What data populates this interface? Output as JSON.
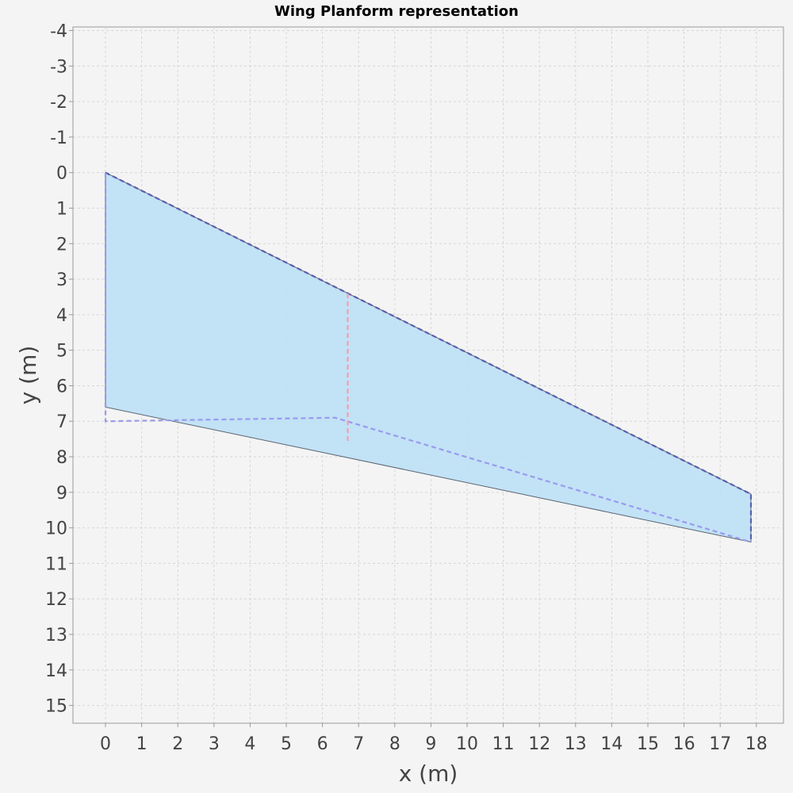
{
  "chart_data": {
    "type": "line",
    "title": "Wing Planform representation",
    "xlabel": "x (m)",
    "ylabel": "y (m)",
    "xlim": [
      -0.9,
      18.75
    ],
    "ylim": [
      -4.1,
      15.5
    ],
    "y_inverted": true,
    "grid": true,
    "xticks": [
      "0",
      "1",
      "2",
      "3",
      "4",
      "5",
      "6",
      "7",
      "8",
      "9",
      "10",
      "11",
      "12",
      "13",
      "14",
      "15",
      "16",
      "17",
      "18"
    ],
    "yticks": [
      "-4",
      "-3",
      "-2",
      "-1",
      "0",
      "1",
      "2",
      "3",
      "4",
      "5",
      "6",
      "7",
      "8",
      "9",
      "10",
      "11",
      "12",
      "13",
      "14",
      "15"
    ],
    "series": [
      {
        "kind": "planform-fill",
        "color": "#bde0f6",
        "edge_color": "#5a6470",
        "x": [
          0,
          17.85,
          17.85,
          0
        ],
        "y": [
          0,
          9.05,
          10.4,
          6.6
        ]
      },
      {
        "kind": "outline-dashed",
        "color": "#5a5fb0",
        "x": [
          0,
          17.85,
          17.85
        ],
        "y": [
          0,
          9.05,
          10.4
        ]
      },
      {
        "kind": "outline-dashed",
        "color": "#9a9aee",
        "x": [
          0,
          0,
          6.35,
          17.85
        ],
        "y": [
          0,
          7.0,
          6.9,
          10.4
        ]
      },
      {
        "kind": "mac-dashed",
        "color": "#f0a0b0",
        "x": [
          6.7,
          6.7
        ],
        "y": [
          3.4,
          7.6
        ]
      }
    ]
  }
}
